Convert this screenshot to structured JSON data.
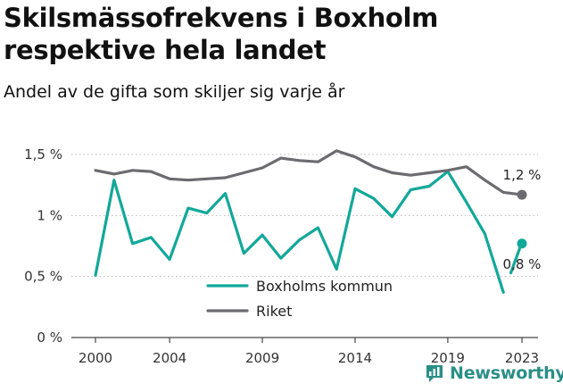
{
  "title": "Skilsmässofrekvens i Boxholm respektive hela landet",
  "subtitle": "Andel av de gifta som skiljer sig varje år",
  "brand": "Newsworthy",
  "chart_data": {
    "type": "line",
    "x": [
      2000,
      2001,
      2002,
      2003,
      2004,
      2005,
      2006,
      2007,
      2008,
      2009,
      2010,
      2011,
      2012,
      2013,
      2014,
      2015,
      2016,
      2017,
      2018,
      2019,
      2020,
      2021,
      2022,
      2023
    ],
    "xticks": [
      2000,
      2004,
      2009,
      2014,
      2019,
      2023
    ],
    "xtick_labels": [
      "2000",
      "2004",
      "2009",
      "2014",
      "2019",
      "2023"
    ],
    "yticks": [
      0,
      0.5,
      1,
      1.5
    ],
    "ytick_labels": [
      "0 %",
      "0,5 %",
      "1 %",
      "1,5 %"
    ],
    "ylim": [
      0,
      1.5
    ],
    "grid": "horizontal dotted",
    "series": [
      {
        "name": "Boxholms kommun",
        "color": "#12a89a",
        "values": [
          0.51,
          1.29,
          0.77,
          0.82,
          0.64,
          1.06,
          1.02,
          1.18,
          0.69,
          0.84,
          0.65,
          0.8,
          0.9,
          0.56,
          1.22,
          1.14,
          0.99,
          1.21,
          1.24,
          1.36,
          1.11,
          0.85,
          0.37,
          0.77
        ],
        "gap_before_last": true,
        "end_label": "0,8 %"
      },
      {
        "name": "Riket",
        "color": "#6c6c70",
        "values": [
          1.37,
          1.34,
          1.37,
          1.36,
          1.3,
          1.29,
          1.3,
          1.31,
          1.35,
          1.39,
          1.47,
          1.45,
          1.44,
          1.53,
          1.48,
          1.4,
          1.35,
          1.33,
          1.35,
          1.37,
          1.4,
          1.29,
          1.19,
          1.17
        ],
        "end_label": "1,2 %"
      }
    ],
    "legend": "inside-lower-center"
  }
}
